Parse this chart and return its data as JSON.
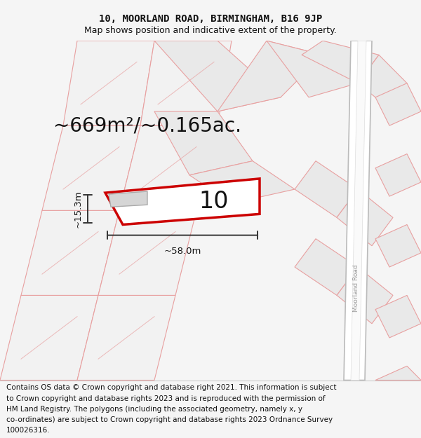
{
  "title_line1": "10, MOORLAND ROAD, BIRMINGHAM, B16 9JP",
  "title_line2": "Map shows position and indicative extent of the property.",
  "area_text": "~669m²/~0.165ac.",
  "property_number": "10",
  "dim_width": "~58.0m",
  "dim_height": "~15.3m",
  "footer_lines": [
    "Contains OS data © Crown copyright and database right 2021. This information is subject",
    "to Crown copyright and database rights 2023 and is reproduced with the permission of",
    "HM Land Registry. The polygons (including the associated geometry, namely x, y",
    "co-ordinates) are subject to Crown copyright and database rights 2023 Ordnance Survey",
    "100026316."
  ],
  "bg_color": "#f5f5f5",
  "map_bg": "#efefef",
  "property_fill": "#ffffff",
  "property_edge": "#cc0000",
  "pink_line_color": "#e8a0a0",
  "dim_line_color": "#333333",
  "road_color": "#ffffff",
  "road_edge": "#bbbbbb",
  "parcel_fill": "#e8e8e8",
  "parcel_edge": "#c8c8c8",
  "title_fontsize": 10,
  "subtitle_fontsize": 9,
  "area_fontsize": 20,
  "number_fontsize": 24,
  "footer_fontsize": 7.5,
  "dim_fontsize": 9.5,
  "road_label_fontsize": 6.5
}
